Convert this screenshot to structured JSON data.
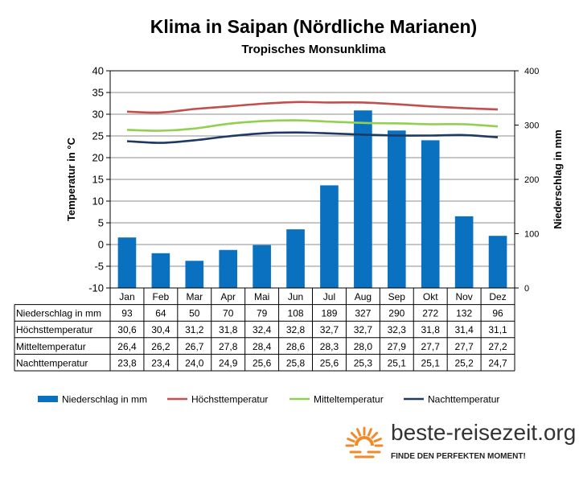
{
  "chart_data": {
    "type": "bar+line",
    "title": "Klima in Saipan (Nördliche Marianen)",
    "subtitle": "Tropisches Monsunklima",
    "categories": [
      "Jan",
      "Feb",
      "Mar",
      "Apr",
      "Mai",
      "Jun",
      "Jul",
      "Aug",
      "Sep",
      "Okt",
      "Nov",
      "Dez"
    ],
    "y_left": {
      "label": "Temperatur in °C",
      "min": -10,
      "max": 40,
      "step": 5
    },
    "y_right": {
      "label": "Niederschlag in mm",
      "min": 0,
      "max": 400,
      "step": 100
    },
    "grid": true,
    "legend_position": "bottom",
    "series": [
      {
        "name": "Niederschlag in mm",
        "type": "bar",
        "axis": "right",
        "color": "#0a70c0",
        "values": [
          93,
          64,
          50,
          70,
          79,
          108,
          189,
          327,
          290,
          272,
          132,
          96
        ],
        "display": [
          "93",
          "64",
          "50",
          "70",
          "79",
          "108",
          "189",
          "327",
          "290",
          "272",
          "132",
          "96"
        ]
      },
      {
        "name": "Höchsttemperatur",
        "type": "line",
        "axis": "left",
        "color": "#c0504d",
        "values": [
          30.6,
          30.4,
          31.2,
          31.8,
          32.4,
          32.8,
          32.7,
          32.7,
          32.3,
          31.8,
          31.4,
          31.1
        ],
        "display": [
          "30,6",
          "30,4",
          "31,2",
          "31,8",
          "32,4",
          "32,8",
          "32,7",
          "32,7",
          "32,3",
          "31,8",
          "31,4",
          "31,1"
        ]
      },
      {
        "name": "Mitteltemperatur",
        "type": "line",
        "axis": "left",
        "color": "#92d050",
        "values": [
          26.4,
          26.2,
          26.7,
          27.8,
          28.4,
          28.6,
          28.3,
          28.0,
          27.9,
          27.7,
          27.7,
          27.2
        ],
        "display": [
          "26,4",
          "26,2",
          "26,7",
          "27,8",
          "28,4",
          "28,6",
          "28,3",
          "28,0",
          "27,9",
          "27,7",
          "27,7",
          "27,2"
        ]
      },
      {
        "name": "Nachttemperatur",
        "type": "line",
        "axis": "left",
        "color": "#1f3864",
        "values": [
          23.8,
          23.4,
          24.0,
          24.9,
          25.6,
          25.8,
          25.6,
          25.3,
          25.1,
          25.1,
          25.2,
          24.7
        ],
        "display": [
          "23,8",
          "23,4",
          "24,0",
          "24,9",
          "25,6",
          "25,8",
          "25,6",
          "25,3",
          "25,1",
          "25,1",
          "25,2",
          "24,7"
        ]
      }
    ]
  },
  "brand": {
    "name": "beste-reisezeit.org",
    "slogan": "FINDE DEN PERFEKTEN MOMENT!",
    "sun_color": "#f08a2a",
    "logo_icon": "sun-icon"
  }
}
